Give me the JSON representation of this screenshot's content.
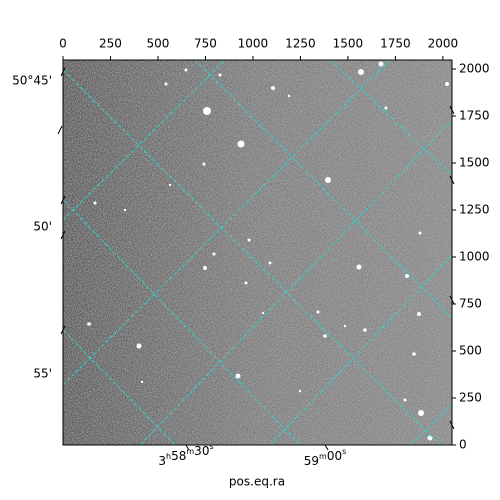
{
  "chart_data": {
    "type": "image",
    "xlabel": "pos.eq.ra",
    "xlim": [
      0,
      2048
    ],
    "xticks": [
      0,
      250,
      500,
      750,
      1000,
      1250,
      1500,
      1750,
      2000
    ],
    "ylim": [
      0,
      2048
    ],
    "yticks": [
      0,
      250,
      500,
      750,
      1000,
      1250,
      1500,
      1750,
      2000
    ],
    "ra_ticks": [
      "3h58m30s",
      "59m00s"
    ],
    "dec_ticks": [
      "50°45'",
      "50'",
      "55'"
    ],
    "grid": true,
    "grid_color": "#2fd6d6"
  }
}
